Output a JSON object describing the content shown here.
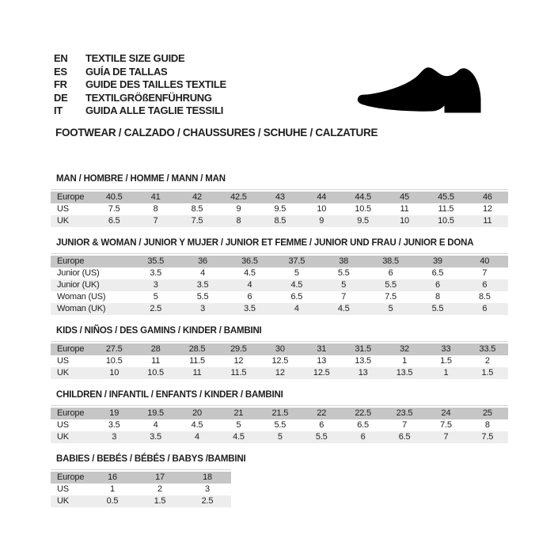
{
  "header": {
    "languages": [
      {
        "code": "EN",
        "text": "TEXTILE SIZE GUIDE"
      },
      {
        "code": "ES",
        "text": "GUÍA DE TALLAS"
      },
      {
        "code": "FR",
        "text": "GUIDE DES TAILLES TEXTILE"
      },
      {
        "code": "DE",
        "text": "TEXTILGRÖßENFÜHRUNG"
      },
      {
        "code": "IT",
        "text": "GUIDA ALLE TAGLIE TESSILI"
      }
    ],
    "category_title": "FOOTWEAR / CALZADO / CHAUSSURES / SCHUHE / CALZATURE",
    "shoe_icon": "dress-shoe-silhouette"
  },
  "tables": [
    {
      "title": "MAN / HOMBRE / HOMME / MANN / MAN",
      "rows": [
        {
          "label": "Europe",
          "header": true,
          "values": [
            "40.5",
            "41",
            "42",
            "42.5",
            "43",
            "44",
            "44.5",
            "45",
            "45.5",
            "46"
          ]
        },
        {
          "label": "US",
          "values": [
            "7.5",
            "8",
            "8.5",
            "9",
            "9.5",
            "10",
            "10.5",
            "11",
            "11.5",
            "12"
          ]
        },
        {
          "label": "UK",
          "values": [
            "6.5",
            "7",
            "7.5",
            "8",
            "8.5",
            "9",
            "9.5",
            "10",
            "10.5",
            "11"
          ]
        }
      ]
    },
    {
      "title": "JUNIOR & WOMAN / JUNIOR Y MUJER / JUNIOR ET FEMME / JUNIOR UND FRAU / JUNIOR E DONA",
      "rows": [
        {
          "label": "Europe",
          "header": true,
          "values": [
            "35.5",
            "36",
            "36.5",
            "37.5",
            "38",
            "38.5",
            "39",
            "40"
          ]
        },
        {
          "label": "Junior (US)",
          "values": [
            "3.5",
            "4",
            "4.5",
            "5",
            "5.5",
            "6",
            "6.5",
            "7"
          ]
        },
        {
          "label": "Junior (UK)",
          "values": [
            "3",
            "3.5",
            "4",
            "4.5",
            "5",
            "5.5",
            "6",
            "6"
          ]
        },
        {
          "label": "Woman (US)",
          "values": [
            "5",
            "5.5",
            "6",
            "6.5",
            "7",
            "7.5",
            "8",
            "8.5"
          ]
        },
        {
          "label": "Woman (UK)",
          "values": [
            "2.5",
            "3",
            "3.5",
            "4",
            "4.5",
            "5",
            "5.5",
            "6"
          ]
        }
      ]
    },
    {
      "title": "KIDS / NIÑOS / DES GAMINS / KINDER / BAMBINI",
      "rows": [
        {
          "label": "Europe",
          "header": true,
          "values": [
            "27.5",
            "28",
            "28.5",
            "29.5",
            "30",
            "31",
            "31.5",
            "32",
            "33",
            "33.5"
          ]
        },
        {
          "label": "US",
          "values": [
            "10.5",
            "11",
            "11.5",
            "12",
            "12.5",
            "13",
            "13.5",
            "1",
            "1.5",
            "2"
          ]
        },
        {
          "label": "UK",
          "values": [
            "10",
            "10.5",
            "11",
            "11.5",
            "12",
            "12.5",
            "13",
            "13.5",
            "1",
            "1.5"
          ]
        }
      ]
    },
    {
      "title": "CHILDREN / INFANTIL / ENFANTS / KINDER / BAMBINI",
      "rows": [
        {
          "label": "Europe",
          "header": true,
          "values": [
            "19",
            "19.5",
            "20",
            "21",
            "21.5",
            "22",
            "22.5",
            "23.5",
            "24",
            "25"
          ]
        },
        {
          "label": "US",
          "values": [
            "3.5",
            "4",
            "4.5",
            "5",
            "5.5",
            "6",
            "6.5",
            "7",
            "7.5",
            "8"
          ]
        },
        {
          "label": "UK",
          "values": [
            "3",
            "3.5",
            "4",
            "4.5",
            "5",
            "5.5",
            "6",
            "6.5",
            "7",
            "7.5"
          ]
        }
      ]
    },
    {
      "title": "BABIES  / BEBÉS / BÉBÉS / BABYS /BAMBINI",
      "rows": [
        {
          "label": "Europe",
          "header": true,
          "values": [
            "16",
            "17",
            "18"
          ]
        },
        {
          "label": "US",
          "values": [
            "1",
            "2",
            "3"
          ]
        },
        {
          "label": "UK",
          "values": [
            "0.5",
            "1.5",
            "2.5"
          ]
        }
      ]
    }
  ],
  "colors": {
    "header_row": "#c6c6c6",
    "alt_row": "#ededed",
    "rule": "#d5d5d5",
    "text": "#1e1e1e",
    "shoe": "#000000"
  }
}
